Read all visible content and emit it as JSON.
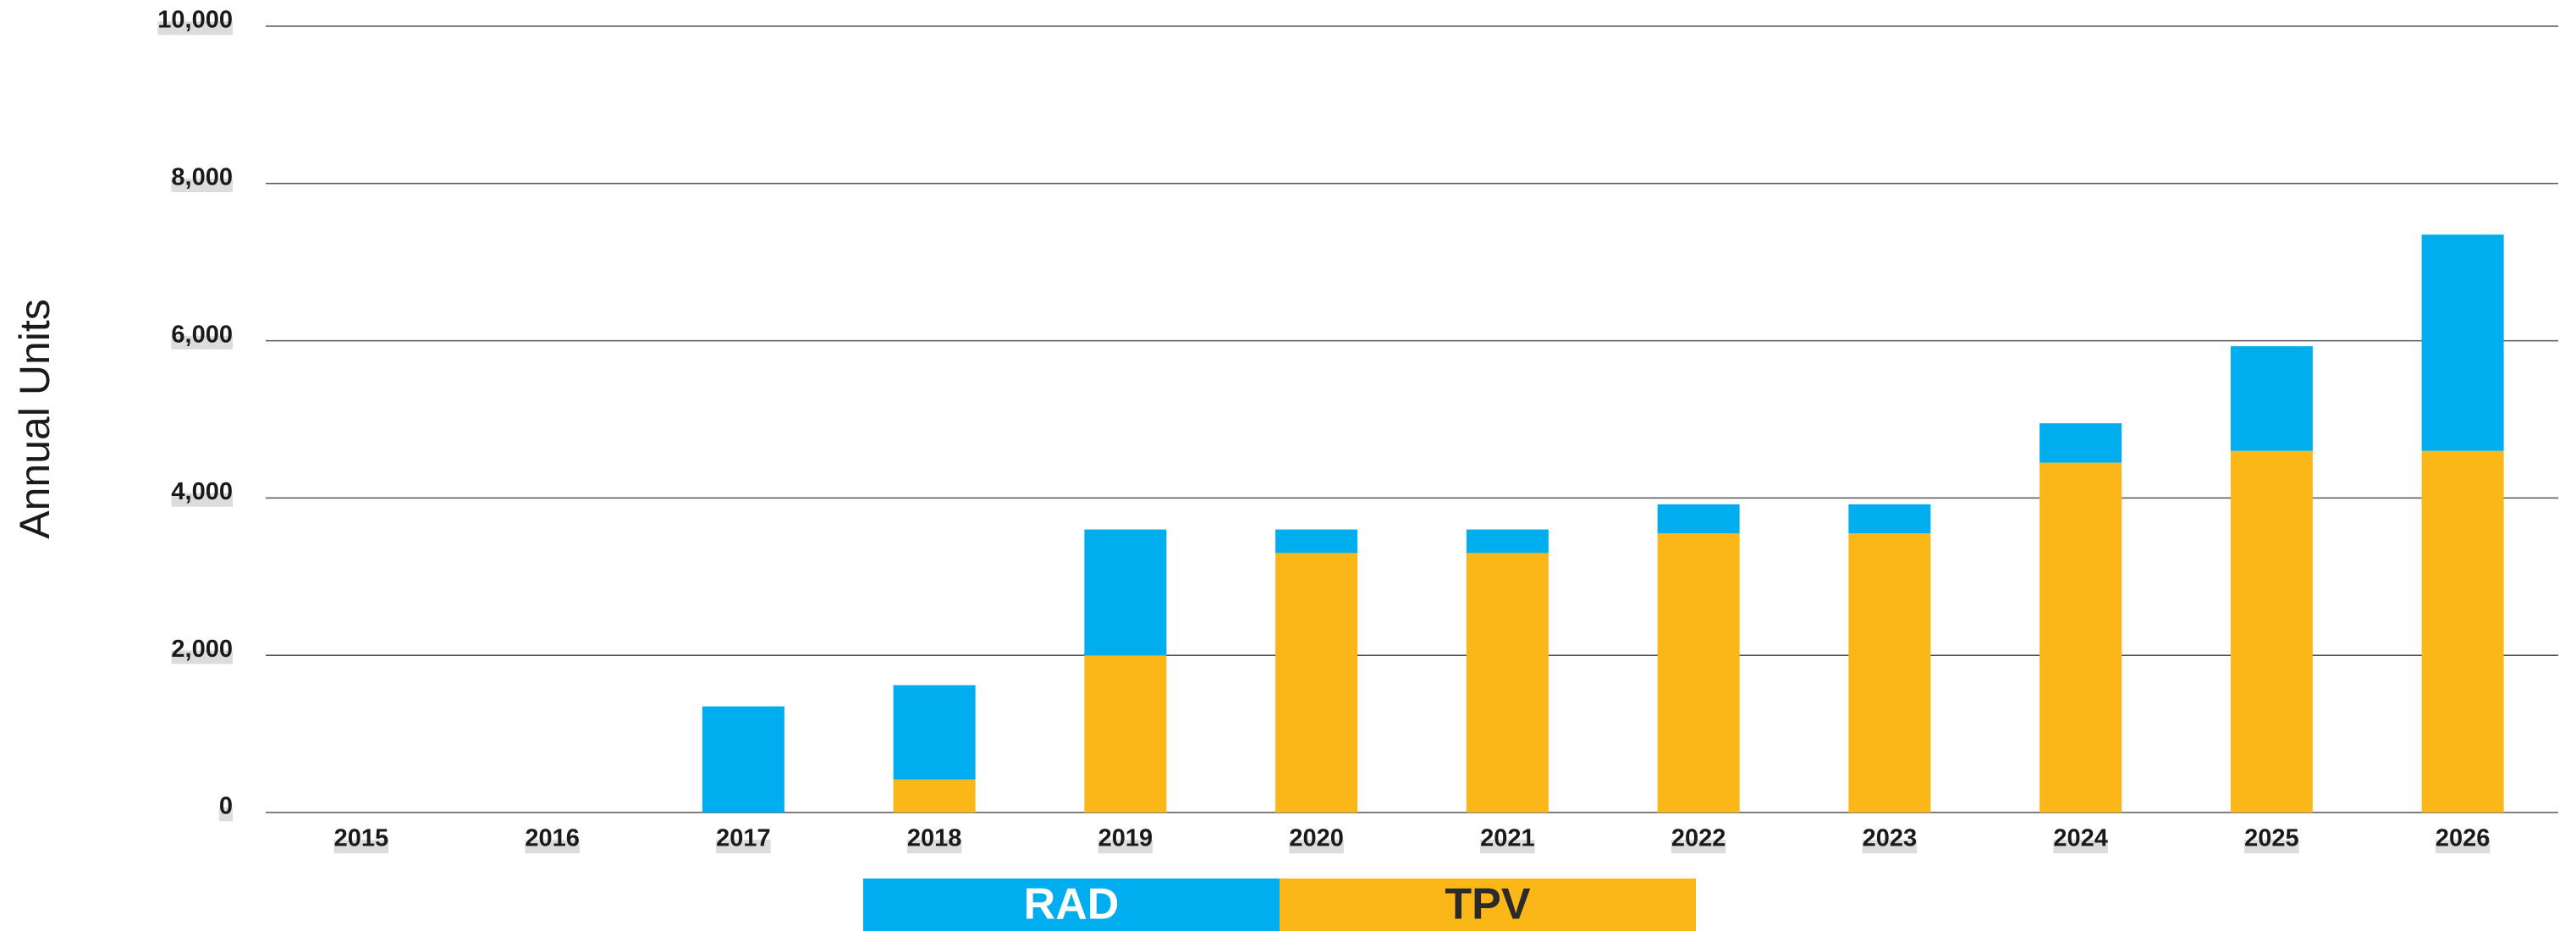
{
  "chart_data": {
    "type": "stacked_bar",
    "y_label": "Annual Units",
    "categories": [
      "2015",
      "2016",
      "2017",
      "2018",
      "2019",
      "2020",
      "2021",
      "2022",
      "2023",
      "2024",
      "2025",
      "2026"
    ],
    "series": [
      {
        "name": "RAD",
        "color": "#00aeef",
        "values": [
          0,
          0,
          1350,
          1200,
          1600,
          300,
          300,
          370,
          370,
          500,
          1330,
          2750
        ]
      },
      {
        "name": "TPV",
        "color": "#fbb717",
        "values": [
          0,
          0,
          0,
          420,
          2000,
          3300,
          3300,
          3550,
          3550,
          4450,
          4600,
          4600
        ]
      }
    ],
    "ylim": [
      0,
      10000
    ],
    "yticks": [
      0,
      {
        "value": 2000,
        "label": "2,000"
      },
      {
        "value": 4000,
        "label": "4,000"
      },
      {
        "value": 6000,
        "label": "6,000"
      },
      {
        "value": 8000,
        "label": "8,000"
      },
      {
        "value": 10000,
        "label": "10,000"
      }
    ],
    "grid": true,
    "legend": "bottom"
  }
}
